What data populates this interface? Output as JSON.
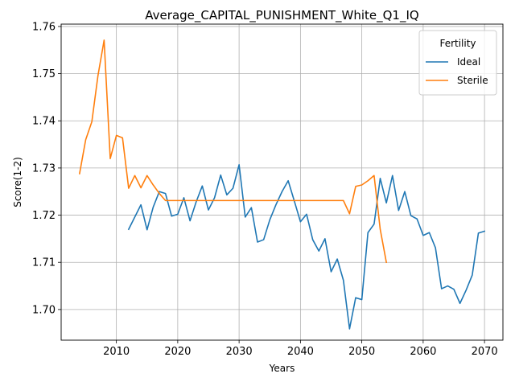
{
  "chart_data": {
    "type": "line",
    "title": "Average_CAPITAL_PUNISHMENT_White_Q1_IQ",
    "xlabel": "Years",
    "ylabel": "Score(1-2)",
    "xlim": [
      2001,
      2073
    ],
    "ylim": [
      1.6935,
      1.7605
    ],
    "xticks": [
      2010,
      2020,
      2030,
      2040,
      2050,
      2060,
      2070
    ],
    "yticks": [
      1.7,
      1.71,
      1.72,
      1.73,
      1.74,
      1.75,
      1.76
    ],
    "ytick_labels": [
      "1.70",
      "1.71",
      "1.72",
      "1.73",
      "1.74",
      "1.75",
      "1.76"
    ],
    "grid": true,
    "legend": {
      "title": "Fertility",
      "position": "top-right"
    },
    "series": [
      {
        "name": "Ideal",
        "color": "#1f77b4",
        "x": [
          2012,
          2013,
          2014,
          2015,
          2016,
          2017,
          2018,
          2019,
          2020,
          2021,
          2022,
          2023,
          2024,
          2025,
          2026,
          2027,
          2028,
          2029,
          2030,
          2031,
          2032,
          2033,
          2034,
          2035,
          2036,
          2037,
          2038,
          2039,
          2040,
          2041,
          2042,
          2043,
          2044,
          2045,
          2046,
          2047,
          2048,
          2049,
          2050,
          2051,
          2052,
          2053,
          2054,
          2055,
          2056,
          2057,
          2058,
          2059,
          2060,
          2061,
          2062,
          2063,
          2064,
          2065,
          2066,
          2067,
          2068,
          2069,
          2070
        ],
        "y": [
          1.717,
          1.7196,
          1.7222,
          1.7169,
          1.7217,
          1.725,
          1.7246,
          1.7198,
          1.7202,
          1.7237,
          1.7188,
          1.7228,
          1.7262,
          1.7211,
          1.7237,
          1.7285,
          1.7243,
          1.7257,
          1.7307,
          1.7196,
          1.7216,
          1.7143,
          1.7148,
          1.719,
          1.7222,
          1.725,
          1.7273,
          1.723,
          1.7186,
          1.7202,
          1.7148,
          1.7124,
          1.715,
          1.708,
          1.7107,
          1.7062,
          1.6959,
          1.7025,
          1.7021,
          1.7163,
          1.7181,
          1.7278,
          1.7226,
          1.7284,
          1.721,
          1.725,
          1.7199,
          1.7192,
          1.7157,
          1.7163,
          1.7131,
          1.7044,
          1.705,
          1.7043,
          1.7013,
          1.7041,
          1.7073,
          1.7162,
          1.7166
        ]
      },
      {
        "name": "Sterile",
        "color": "#ff7f0e",
        "x": [
          2004,
          2005,
          2006,
          2007,
          2008,
          2009,
          2010,
          2011,
          2012,
          2013,
          2014,
          2015,
          2016,
          2017,
          2018,
          2019,
          2020,
          2021,
          2022,
          2023,
          2024,
          2025,
          2026,
          2027,
          2028,
          2029,
          2030,
          2031,
          2032,
          2033,
          2034,
          2035,
          2036,
          2037,
          2038,
          2039,
          2040,
          2041,
          2042,
          2043,
          2044,
          2045,
          2046,
          2047,
          2048,
          2049,
          2050,
          2051,
          2052,
          2053,
          2054
        ],
        "y": [
          1.7288,
          1.736,
          1.7398,
          1.7496,
          1.7571,
          1.732,
          1.7369,
          1.7364,
          1.7257,
          1.7284,
          1.7258,
          1.7284,
          1.7264,
          1.7246,
          1.7231,
          1.7231,
          1.7231,
          1.7231,
          1.7231,
          1.7231,
          1.7231,
          1.7231,
          1.7231,
          1.7231,
          1.7231,
          1.7231,
          1.7231,
          1.7231,
          1.7231,
          1.7231,
          1.7231,
          1.7231,
          1.7231,
          1.7231,
          1.7231,
          1.7231,
          1.7231,
          1.7231,
          1.7231,
          1.7231,
          1.7231,
          1.7231,
          1.7231,
          1.7231,
          1.7203,
          1.7261,
          1.7264,
          1.7273,
          1.7284,
          1.717,
          1.71
        ]
      }
    ]
  }
}
